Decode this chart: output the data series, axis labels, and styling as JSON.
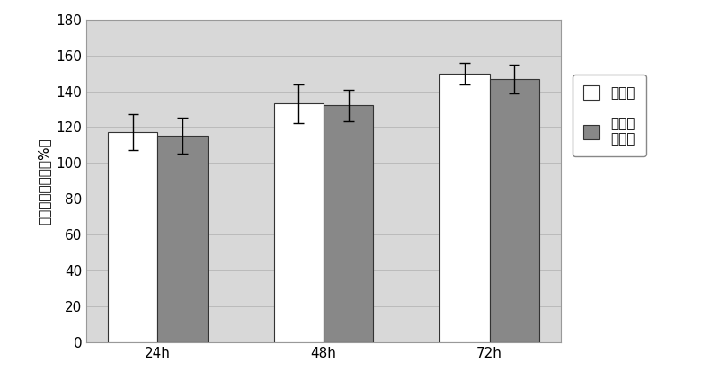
{
  "categories": [
    "24h",
    "48h",
    "72h"
  ],
  "white_values": [
    117,
    133,
    150
  ],
  "dark_values": [
    115,
    132,
    147
  ],
  "white_errors": [
    10,
    11,
    6
  ],
  "dark_errors": [
    10,
    9,
    8
  ],
  "white_color": "#FFFFFF",
  "dark_color": "#888888",
  "bar_edge_color": "#333333",
  "ylabel": "黑素细胞增殖率（%）",
  "ylim": [
    0,
    180
  ],
  "yticks": [
    0,
    20,
    40,
    60,
    80,
    100,
    120,
    140,
    160,
    180
  ],
  "legend_white_label": "空白组",
  "legend_dark_label": "卡波姆\n凝胶组",
  "bar_width": 0.3,
  "grid_color": "#BBBBBB",
  "plot_bg_color": "#D8D8D8",
  "fig_bg_color": "#FFFFFF",
  "font_size": 11,
  "tick_font_size": 11
}
